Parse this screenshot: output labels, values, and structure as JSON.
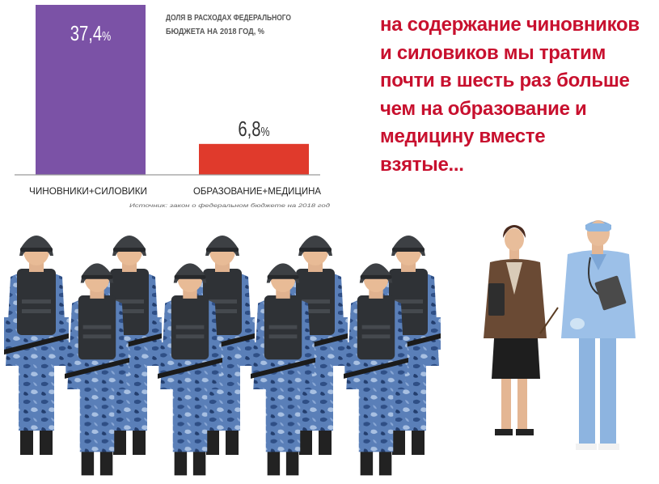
{
  "chart_data": {
    "type": "bar",
    "title": "ДОЛЯ В РАСХОДАХ ФЕДЕРАЛЬНОГО БЮДЖЕТА НА 2018 ГОД, %",
    "title_lines": [
      "ДОЛЯ В РАСХОДАХ ФЕДЕРАЛЬНОГО",
      "БЮДЖЕТА НА 2018 ГОД, %"
    ],
    "categories": [
      "ЧИНОВНИКИ+СИЛОВИКИ",
      "ОБРАЗОВАНИЕ+МЕДИЦИНА"
    ],
    "values": [
      37.4,
      6.8
    ],
    "value_labels": [
      "37,4",
      "6,8"
    ],
    "unit": "%",
    "colors": [
      "#7b52a6",
      "#e03a2c"
    ],
    "ylim": [
      0,
      37.4
    ],
    "xlabel": "",
    "ylabel": "",
    "grid": false,
    "source": "Источник: закон о федеральном бюджете на 2018 год"
  },
  "headline": {
    "lines": [
      "на содержание чиновников",
      "и силовиков мы тратим",
      "почти в шесть раз больше",
      "чем на образование и",
      "медицину вместе",
      "взятые..."
    ],
    "color": "#c8102e"
  },
  "illustration": {
    "riot_police_count": 10,
    "people": [
      "teacher",
      "doctor"
    ],
    "camo_color": "#5a7fb8"
  }
}
